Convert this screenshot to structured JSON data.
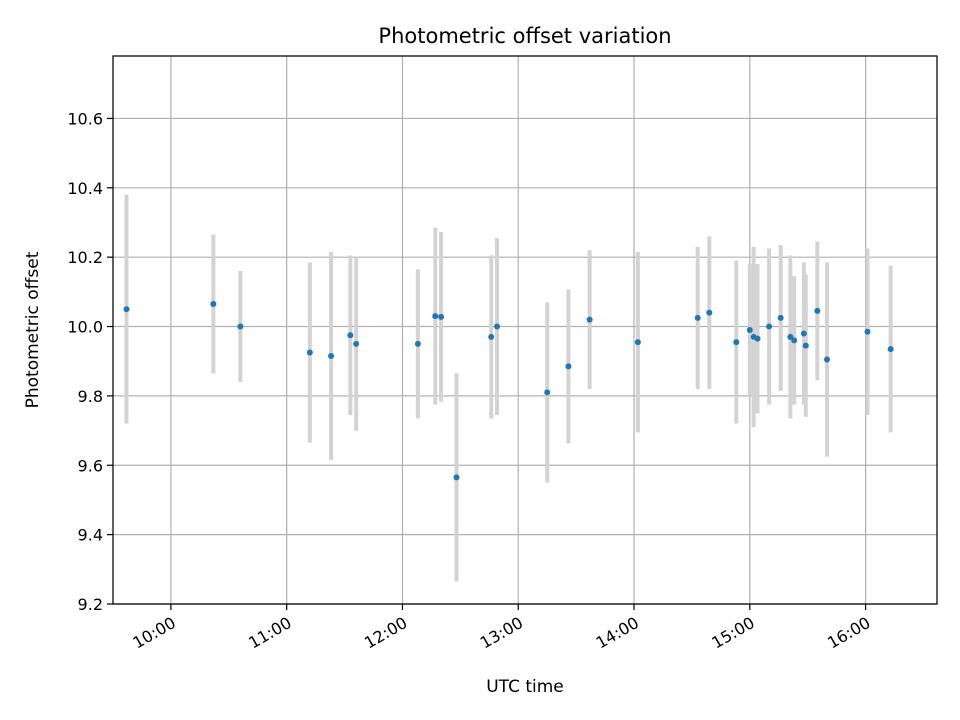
{
  "chart_data": {
    "type": "scatter",
    "title": "Photometric offset variation",
    "xlabel": "UTC time",
    "ylabel": "Photometric offset",
    "x_tick_labels": [
      "10:00",
      "11:00",
      "12:00",
      "13:00",
      "14:00",
      "15:00",
      "16:00"
    ],
    "y_tick_labels": [
      "9.2",
      "9.4",
      "9.6",
      "9.8",
      "10.0",
      "10.2",
      "10.4",
      "10.6"
    ],
    "xlim": [
      "09:30",
      "16:37"
    ],
    "ylim": [
      9.2,
      10.78
    ],
    "grid": true,
    "marker_color": "#1f77b4",
    "errorbar_color": "#d3d3d3",
    "points": [
      {
        "time": "09:37",
        "y": 10.05,
        "err": 0.33
      },
      {
        "time": "10:22",
        "y": 10.065,
        "err": 0.2
      },
      {
        "time": "10:36",
        "y": 10.0,
        "err": 0.16
      },
      {
        "time": "11:12",
        "y": 9.925,
        "err": 0.26
      },
      {
        "time": "11:23",
        "y": 9.915,
        "err": 0.3
      },
      {
        "time": "11:33",
        "y": 9.975,
        "err": 0.23
      },
      {
        "time": "11:36",
        "y": 9.95,
        "err": 0.25
      },
      {
        "time": "12:08",
        "y": 9.95,
        "err": 0.215
      },
      {
        "time": "12:17",
        "y": 10.03,
        "err": 0.255
      },
      {
        "time": "12:20",
        "y": 10.028,
        "err": 0.245
      },
      {
        "time": "12:28",
        "y": 9.565,
        "err": 0.3
      },
      {
        "time": "12:46",
        "y": 9.97,
        "err": 0.235
      },
      {
        "time": "12:49",
        "y": 10.0,
        "err": 0.255
      },
      {
        "time": "13:15",
        "y": 9.81,
        "err": 0.26
      },
      {
        "time": "13:26",
        "y": 9.885,
        "err": 0.222
      },
      {
        "time": "13:37",
        "y": 10.02,
        "err": 0.2
      },
      {
        "time": "14:02",
        "y": 9.955,
        "err": 0.26
      },
      {
        "time": "14:33",
        "y": 10.025,
        "err": 0.205
      },
      {
        "time": "14:39",
        "y": 10.04,
        "err": 0.22
      },
      {
        "time": "14:53",
        "y": 9.955,
        "err": 0.235
      },
      {
        "time": "15:00",
        "y": 9.99,
        "err": 0.19
      },
      {
        "time": "15:02",
        "y": 9.97,
        "err": 0.26
      },
      {
        "time": "15:04",
        "y": 9.965,
        "err": 0.215
      },
      {
        "time": "15:10",
        "y": 10.0,
        "err": 0.225
      },
      {
        "time": "15:16",
        "y": 10.025,
        "err": 0.21
      },
      {
        "time": "15:21",
        "y": 9.97,
        "err": 0.235
      },
      {
        "time": "15:23",
        "y": 9.96,
        "err": 0.185
      },
      {
        "time": "15:28",
        "y": 9.98,
        "err": 0.205
      },
      {
        "time": "15:29",
        "y": 9.945,
        "err": 0.205
      },
      {
        "time": "15:35",
        "y": 10.045,
        "err": 0.2
      },
      {
        "time": "15:40",
        "y": 9.905,
        "err": 0.28
      },
      {
        "time": "16:01",
        "y": 9.985,
        "err": 0.24
      },
      {
        "time": "16:13",
        "y": 9.935,
        "err": 0.24
      }
    ]
  }
}
